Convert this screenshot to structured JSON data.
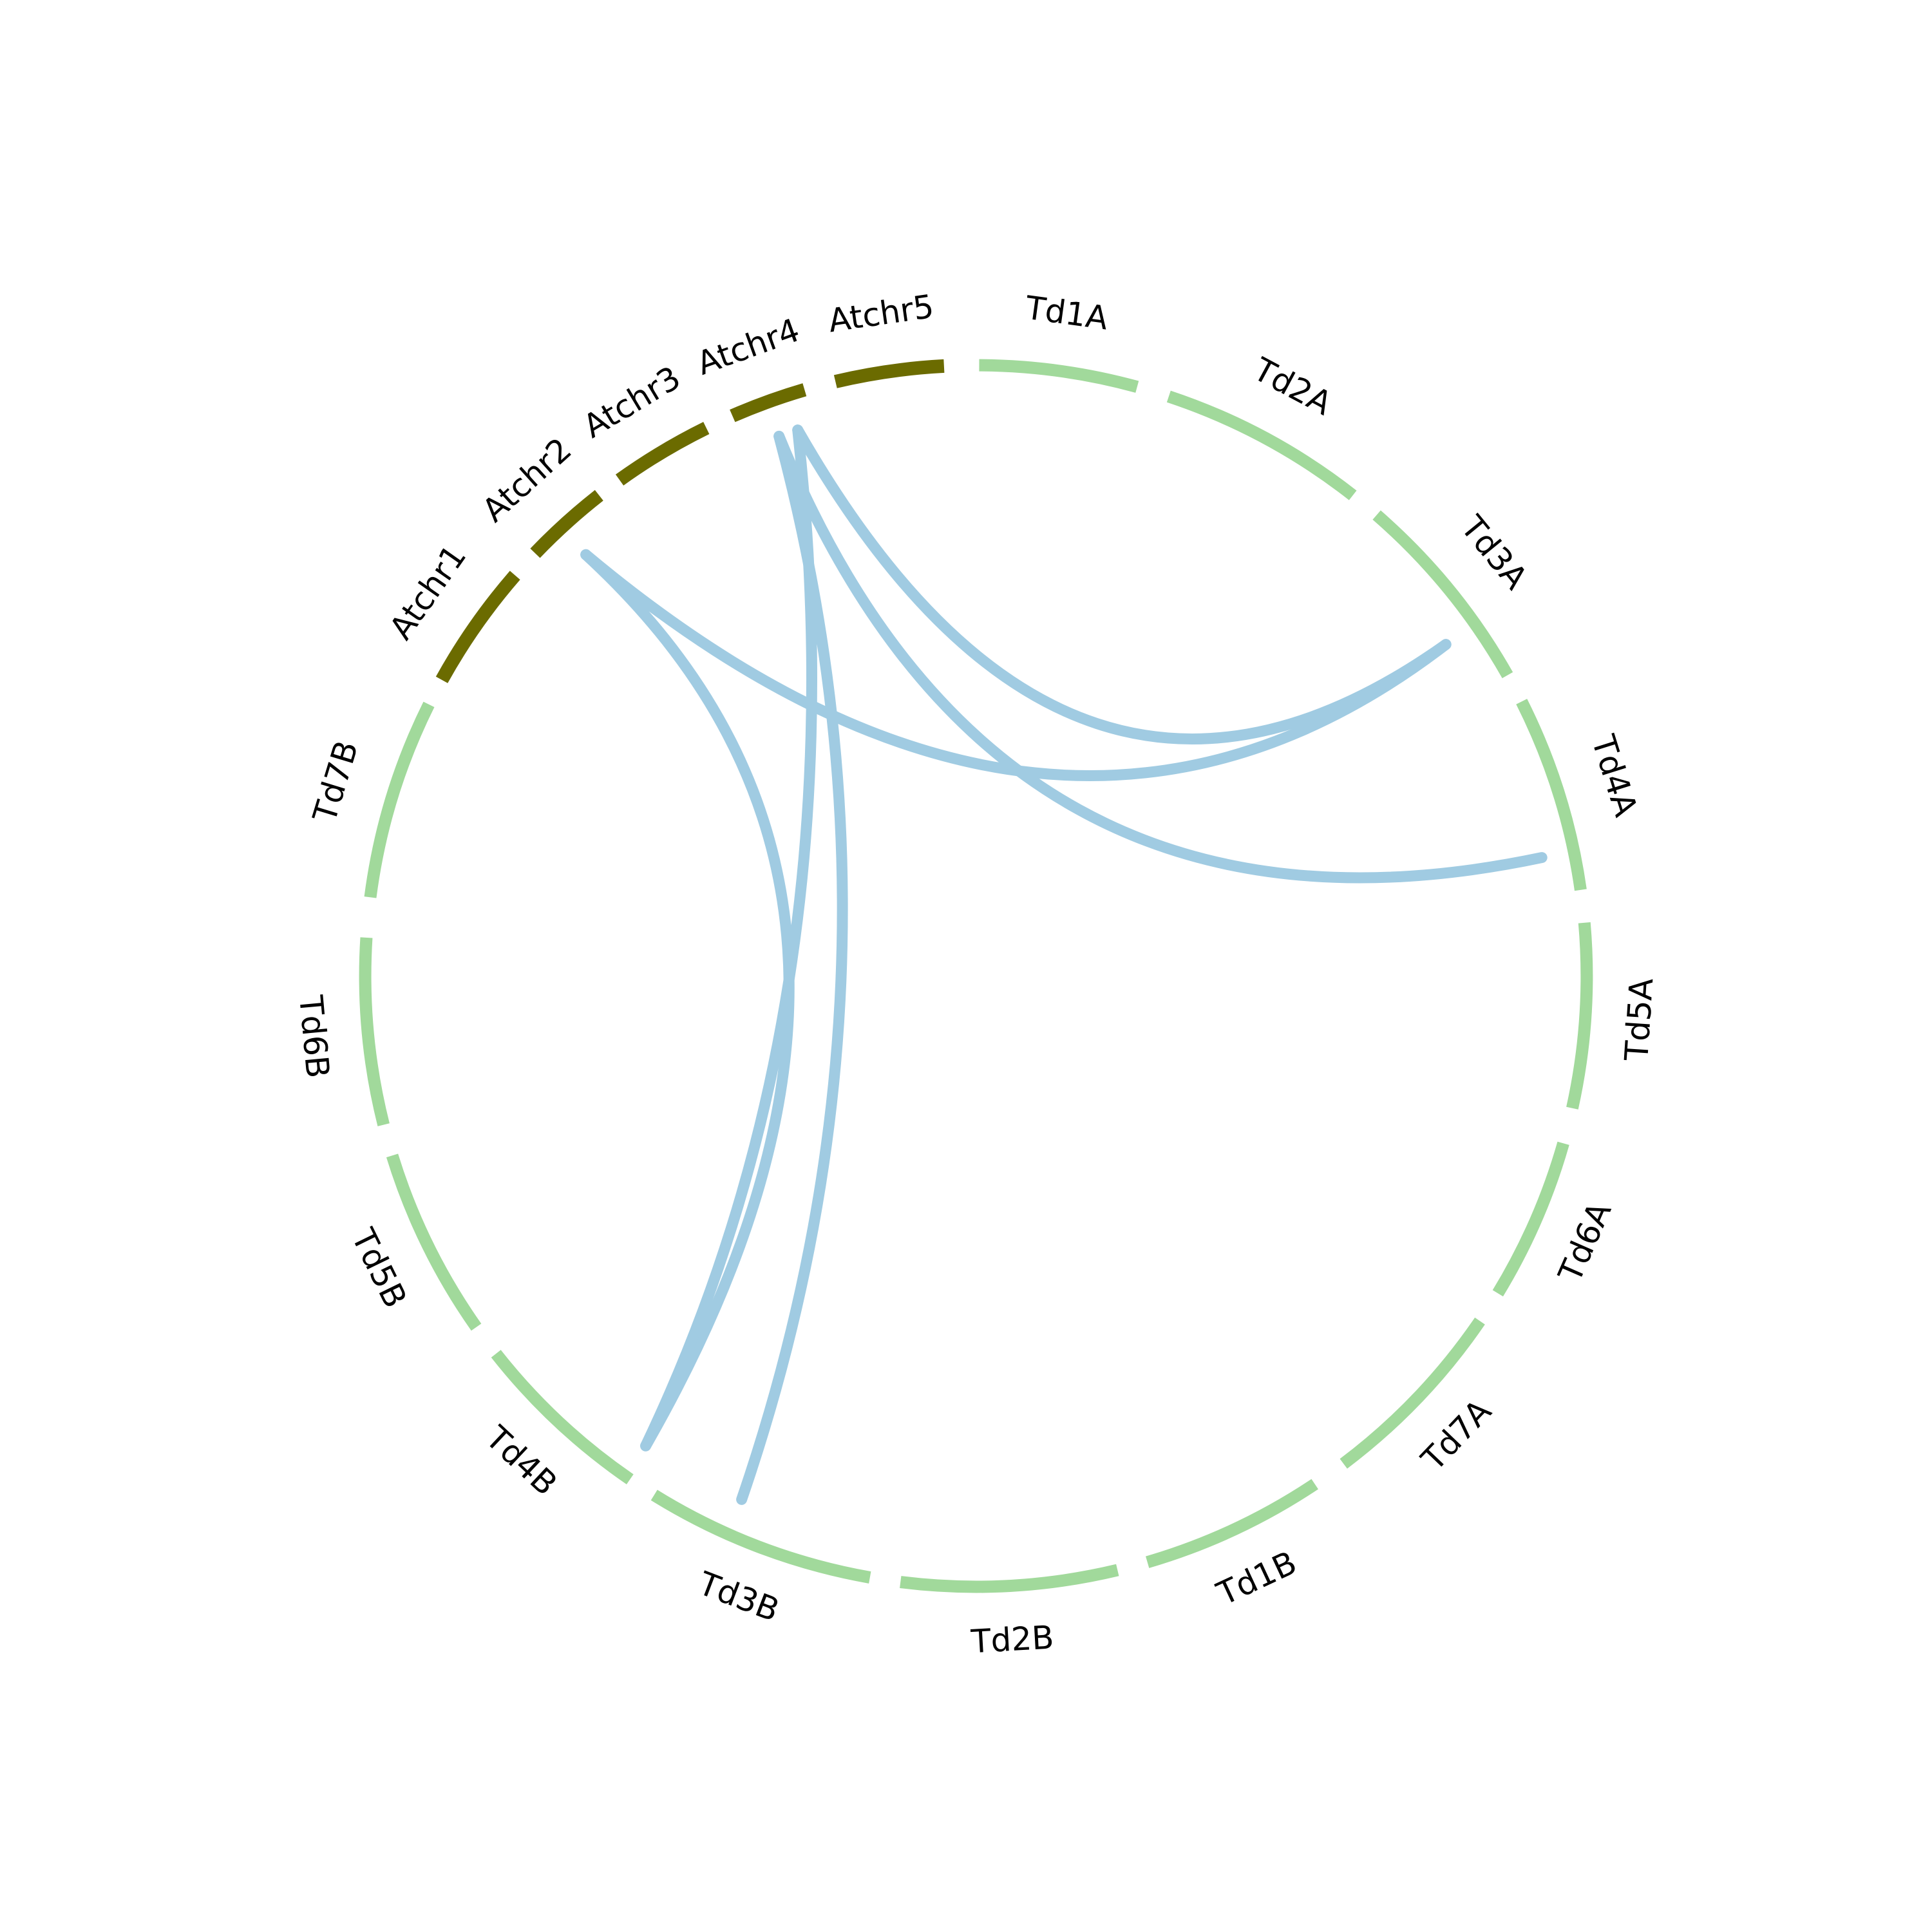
{
  "segments": [
    "Td1A",
    "Td2A",
    "Td3A",
    "Td4A",
    "Td5A",
    "Td6A",
    "Td7A",
    "Td1B",
    "Td2B",
    "Td3B",
    "Td4B",
    "Td5B",
    "Td6B",
    "Td7B",
    "Atchr1",
    "Atchr2",
    "Atchr3",
    "Atchr4",
    "Atchr5"
  ]
}
